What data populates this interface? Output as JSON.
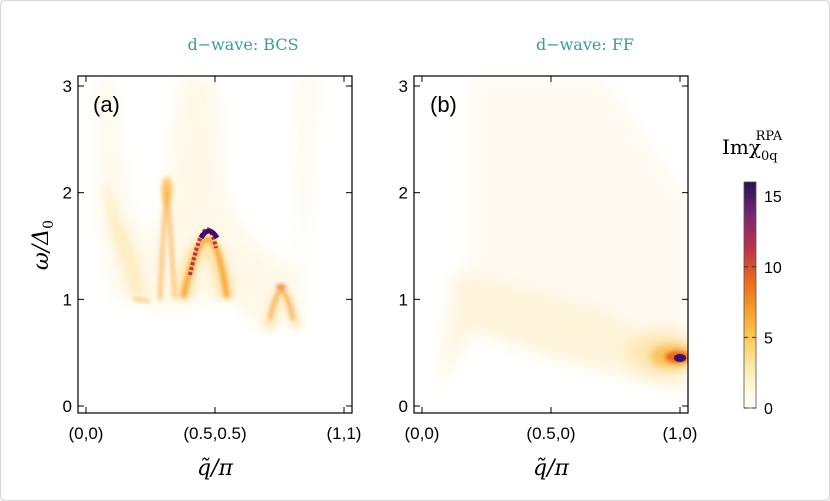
{
  "chart_data": [
    {
      "type": "heatmap",
      "title": "d−wave: BCS",
      "panel_label": "(a)",
      "xlabel": "q̃/π",
      "ylabel": "ω/Δ",
      "ylabel_sub": "0",
      "x_ticks": [
        "(0,0)",
        "(0.5,0.5)",
        "(1,1)"
      ],
      "y_ticks": [
        "0",
        "1",
        "2",
        "3"
      ],
      "ylim": [
        0,
        3
      ],
      "features": [
        {
          "name": "dome",
          "q_start": 0.38,
          "q_peak": 0.5,
          "q_end": 0.62,
          "omega_base": 1.0,
          "omega_peak": 1.65,
          "max_intensity": 16
        },
        {
          "name": "small-dome",
          "q_start": 0.69,
          "q_peak": 0.745,
          "q_end": 0.8,
          "omega_base": 0.75,
          "omega_peak": 1.17,
          "max_intensity": 8
        },
        {
          "name": "spike",
          "q": 0.335,
          "omega": 2.05,
          "max_intensity": 5
        },
        {
          "name": "edge",
          "q_start": 0.2,
          "q_end": 0.25,
          "omega": 1.0,
          "max_intensity": 3
        }
      ]
    },
    {
      "type": "heatmap",
      "title": "d−wave: FF",
      "panel_label": "(b)",
      "xlabel": "q̃/π",
      "x_ticks": [
        "(0,0)",
        "(0.5,0)",
        "(1,0)"
      ],
      "y_ticks": [
        "0",
        "1",
        "2",
        "3"
      ],
      "ylim": [
        0,
        3
      ],
      "features": [
        {
          "name": "hotspot",
          "q": 0.98,
          "omega": 0.45,
          "max_intensity": 16
        },
        {
          "name": "diagonal-band",
          "q_start": 0.15,
          "q_end": 0.95,
          "omega_start": 1.25,
          "omega_end": 0.55,
          "max_intensity": 1
        }
      ]
    }
  ],
  "colorbar": {
    "title": "Imχ",
    "title_sup": "RPA",
    "title_sub": "0q",
    "ticks": [
      "0",
      "5",
      "10",
      "15"
    ],
    "tick_values": [
      0,
      5,
      10,
      15
    ],
    "min": 0,
    "max": 16,
    "colors": [
      "#ffffff",
      "#fff1c4",
      "#fed163",
      "#f7a02a",
      "#e8661d",
      "#b8324a",
      "#752773",
      "#2d0e55"
    ]
  },
  "title_color": "#3a9c99"
}
